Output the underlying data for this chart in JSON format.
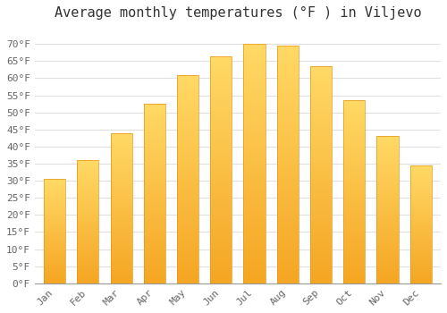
{
  "title": "Average monthly temperatures (°F ) in Viljevo",
  "months": [
    "Jan",
    "Feb",
    "Mar",
    "Apr",
    "May",
    "Jun",
    "Jul",
    "Aug",
    "Sep",
    "Oct",
    "Nov",
    "Dec"
  ],
  "values": [
    30.5,
    36.0,
    44.0,
    52.5,
    61.0,
    66.5,
    70.0,
    69.5,
    63.5,
    53.5,
    43.0,
    34.5
  ],
  "bar_color_bottom": "#F5A623",
  "bar_color_top": "#FFD966",
  "bar_edge_color": "#E8951A",
  "ylim": [
    0,
    75
  ],
  "yticks": [
    0,
    5,
    10,
    15,
    20,
    25,
    30,
    35,
    40,
    45,
    50,
    55,
    60,
    65,
    70
  ],
  "ytick_labels": [
    "0°F",
    "5°F",
    "10°F",
    "15°F",
    "20°F",
    "25°F",
    "30°F",
    "35°F",
    "40°F",
    "45°F",
    "50°F",
    "55°F",
    "60°F",
    "65°F",
    "70°F"
  ],
  "background_color": "#ffffff",
  "grid_color": "#e0e0e0",
  "title_fontsize": 11,
  "tick_fontsize": 8,
  "tick_color": "#666666"
}
